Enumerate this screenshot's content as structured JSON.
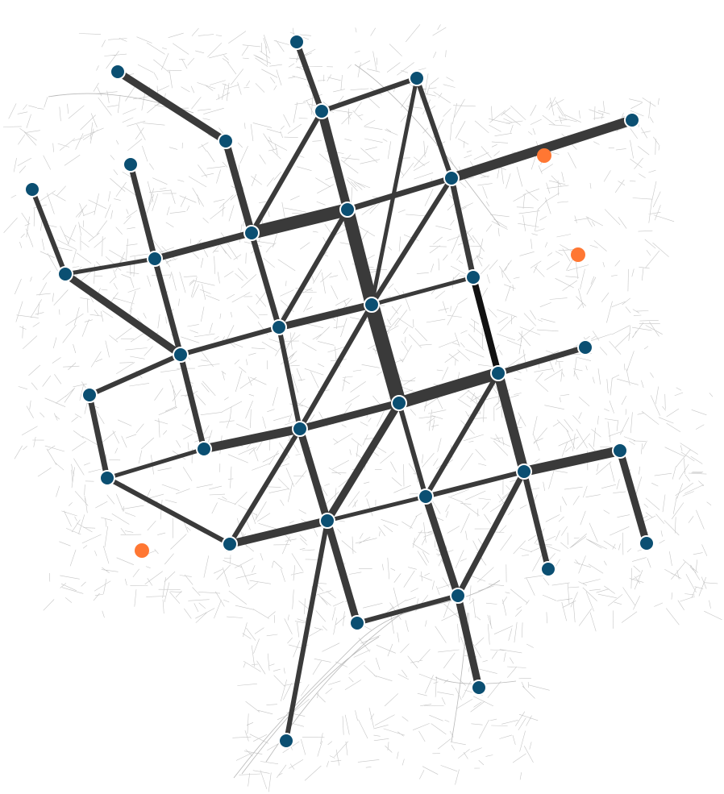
{
  "map": {
    "colors": {
      "background": "#ffffff",
      "streets": "#b8b8b8",
      "edges": "#3a3a3a",
      "edges_strong": "#111111",
      "nodes": "#0b4f72",
      "node_outline": "#ffffff",
      "poi": "#ff7733"
    },
    "node_count": 38,
    "poi_count": 3
  }
}
